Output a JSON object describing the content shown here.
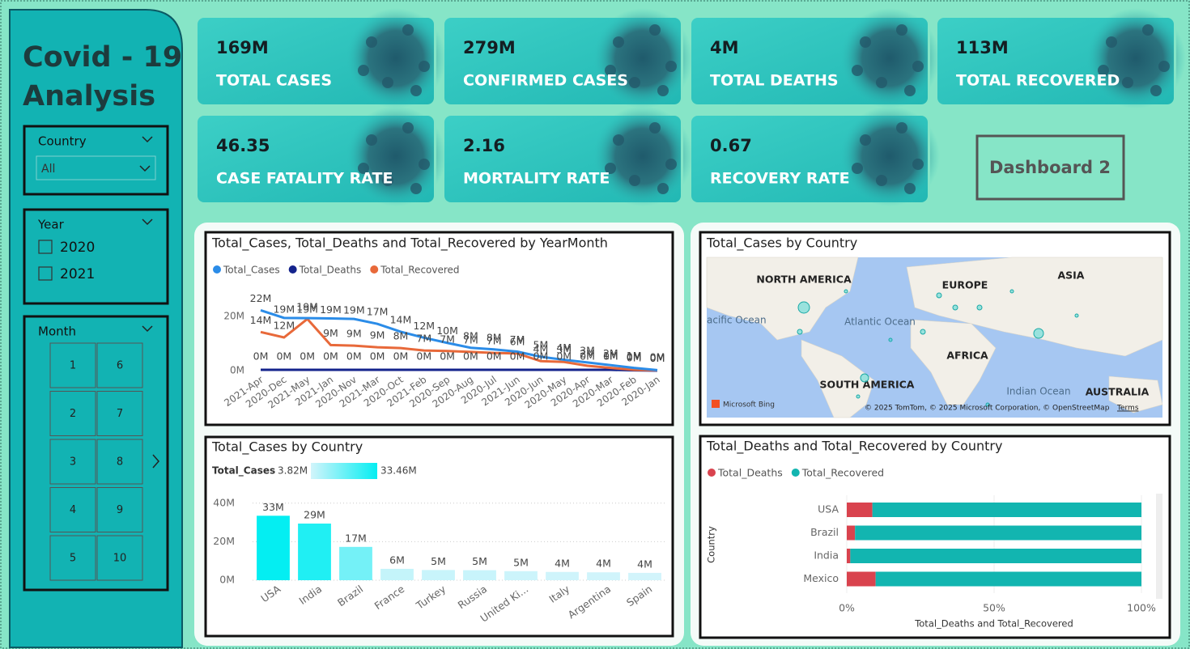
{
  "title": "Covid - 19 Analysis",
  "slicers": [
    {
      "title": "Country",
      "value": "All"
    },
    {
      "title": "Year",
      "options": [
        "2020",
        "2021"
      ]
    },
    {
      "title": "Month",
      "options": [
        "1",
        "2",
        "3",
        "4",
        "5",
        "6",
        "7",
        "8",
        "9",
        "10"
      ]
    }
  ],
  "kpis": [
    {
      "value": "169M",
      "label": "TOTAL CASES"
    },
    {
      "value": "279M",
      "label": "CONFIRMED CASES"
    },
    {
      "value": "4M",
      "label": "TOTAL DEATHS"
    },
    {
      "value": "113M",
      "label": "TOTAL RECOVERED"
    },
    {
      "value": "46.35",
      "label": "CASE FATALITY RATE"
    },
    {
      "value": "2.16",
      "label": "MORTALITY RATE"
    },
    {
      "value": "0.67",
      "label": "RECOVERY RATE"
    }
  ],
  "button": "Dashboard 2",
  "map": {
    "title": "Total_Cases by Country",
    "labels": [
      "NORTH AMERICA",
      "EUROPE",
      "ASIA",
      "Atlantic Ocean",
      "acific Ocean",
      "AFRICA",
      "SOUTH AMERICA",
      "Indian Ocean",
      "AUSTRALIA"
    ],
    "provider": "Microsoft Bing",
    "attribution": "© 2025 TomTom, © 2025 Microsoft Corporation, © OpenStreetMap",
    "terms": "Terms"
  },
  "chart_data": [
    {
      "type": "line",
      "title": "Total_Cases, Total_Deaths and Total_Recovered by YearMonth",
      "categories": [
        "2021-Apr",
        "2020-Dec",
        "2021-May",
        "2021-Jan",
        "2020-Nov",
        "2021-Mar",
        "2020-Oct",
        "2021-Feb",
        "2020-Sep",
        "2020-Aug",
        "2020-Jul",
        "2021-Jun",
        "2020-Jun",
        "2020-May",
        "2020-Apr",
        "2020-Mar",
        "2020-Feb",
        "2020-Jan"
      ],
      "series": [
        {
          "name": "Total_Cases",
          "color": "#2b8ce8",
          "values": [
            22200000,
            19400000,
            19300000,
            19200000,
            19000000,
            17200000,
            14300000,
            12100000,
            10200000,
            8400000,
            7800000,
            7000000,
            5100000,
            4000000,
            3000000,
            2000000,
            1000000,
            200000
          ],
          "value_labels": [
            "22M",
            "19M",
            "19M",
            "19M",
            "19M",
            "17M",
            "14M",
            "12M",
            "10M",
            "8M",
            "8M",
            "7M",
            "5M",
            "4M",
            "3M",
            "2M",
            "1M",
            "0M"
          ]
        },
        {
          "name": "Total_Deaths",
          "color": "#14238c",
          "values": [
            300000,
            300000,
            300000,
            300000,
            300000,
            300000,
            300000,
            300000,
            300000,
            300000,
            300000,
            300000,
            300000,
            300000,
            300000,
            300000,
            100000,
            0
          ],
          "value_labels": [
            "0M",
            "0M",
            "0M",
            "0M",
            "0M",
            "0M",
            "0M",
            "0M",
            "0M",
            "0M",
            "0M",
            "0M",
            "0M",
            "0M",
            "0M",
            "0M",
            "0M",
            "0M"
          ]
        },
        {
          "name": "Total_Recovered",
          "color": "#e8693a",
          "values": [
            14200000,
            12200000,
            19000000,
            9400000,
            9200000,
            8600000,
            8300000,
            7400000,
            7200000,
            6900000,
            6500000,
            6300000,
            3500000,
            3200000,
            1800000,
            1000000,
            300000,
            100000
          ],
          "value_labels": [
            "14M",
            "12M",
            "19M",
            "9M",
            "9M",
            "9M",
            "8M",
            "7M",
            "7M",
            "7M",
            "7M",
            "6M",
            "4M",
            "3M",
            "2M",
            "1M",
            "0M",
            "0M"
          ]
        }
      ],
      "ylim": [
        0,
        25000000
      ],
      "yticks": [
        {
          "value": 0,
          "label": "0M"
        },
        {
          "value": 20000000,
          "label": "20M"
        }
      ],
      "legend": "top-left"
    },
    {
      "type": "bar",
      "title": "Total_Cases by Country",
      "categories": [
        "USA",
        "India",
        "Brazil",
        "France",
        "Turkey",
        "Russia",
        "United Ki...",
        "Italy",
        "Argentina",
        "Spain"
      ],
      "values": [
        33460000,
        29400000,
        17300000,
        5900000,
        5300000,
        5200000,
        4700000,
        4300000,
        4100000,
        3820000
      ],
      "value_labels": [
        "33M",
        "29M",
        "17M",
        "6M",
        "5M",
        "5M",
        "5M",
        "4M",
        "4M",
        "4M"
      ],
      "color_scale": {
        "title": "Total_Cases",
        "min": {
          "value": 3820000,
          "label": "3.82M"
        },
        "max": {
          "value": 33460000,
          "label": "33.46M"
        },
        "colors": [
          "#d2f4fb",
          "#04eef2"
        ]
      },
      "ylim": [
        0,
        42000000
      ],
      "yticks": [
        {
          "value": 0,
          "label": "0M"
        },
        {
          "value": 20000000,
          "label": "20M"
        },
        {
          "value": 40000000,
          "label": "40M"
        }
      ],
      "grid": true
    },
    {
      "type": "stacked-bar-horizontal",
      "title": "Total_Deaths and Total_Recovered by Country",
      "categories": [
        "USA",
        "Brazil",
        "India",
        "Mexico"
      ],
      "series": [
        {
          "name": "Total_Deaths",
          "color": "#d9434e",
          "values": [
            8.7,
            2.8,
            1.2,
            9.8
          ]
        },
        {
          "name": "Total_Recovered",
          "color": "#12b5b0",
          "values": [
            91.3,
            97.2,
            98.8,
            90.2
          ]
        }
      ],
      "xlim": [
        0,
        100
      ],
      "xticks": [
        {
          "value": 0,
          "label": "0%"
        },
        {
          "value": 50,
          "label": "50%"
        },
        {
          "value": 100,
          "label": "100%"
        }
      ],
      "xlabel": "Total_Deaths and Total_Recovered",
      "ylabel": "Country",
      "legend": "top-left"
    }
  ]
}
